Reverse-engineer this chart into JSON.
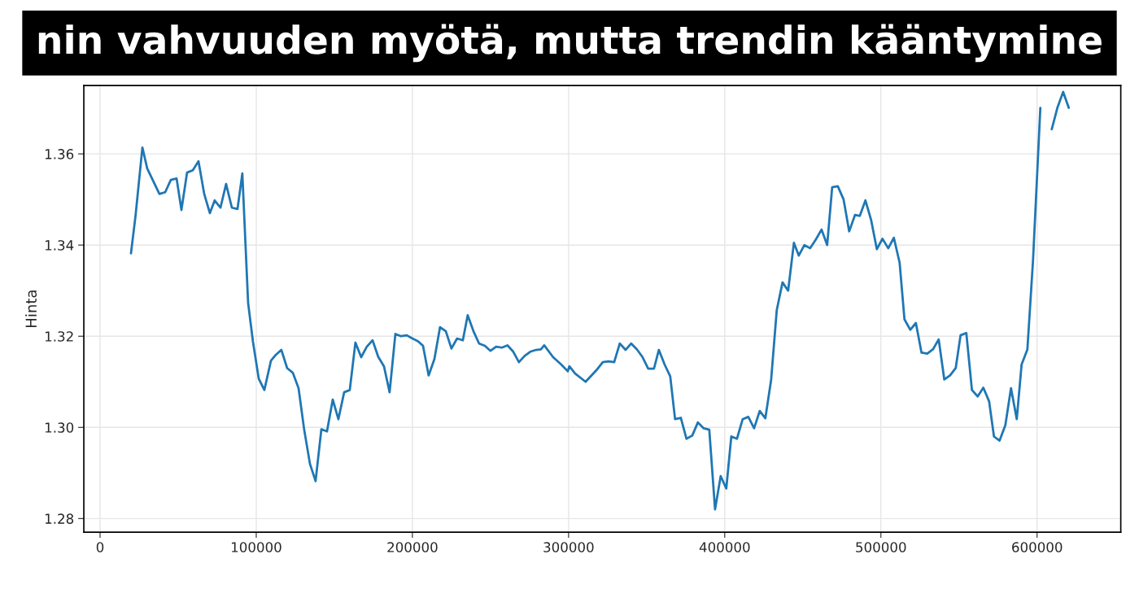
{
  "chart_data": {
    "type": "line",
    "title": "nin vahvuuden myötä, mutta trendin kääntymine",
    "ylabel": "Hinta",
    "x": [
      19800,
      22700,
      27100,
      30200,
      38000,
      41700,
      45300,
      49000,
      52100,
      55700,
      59400,
      63000,
      66700,
      70300,
      73400,
      77100,
      80700,
      84400,
      88000,
      91100,
      94800,
      97900,
      101600,
      105200,
      109400,
      112500,
      116100,
      119800,
      123400,
      127100,
      130700,
      134400,
      138000,
      141700,
      145300,
      149000,
      152600,
      156300,
      159900,
      163500,
      167200,
      170800,
      174500,
      178100,
      181800,
      185400,
      189100,
      192700,
      196400,
      200000,
      203600,
      206800,
      210400,
      214100,
      217700,
      221400,
      225000,
      228600,
      232300,
      235400,
      239100,
      242700,
      246400,
      250000,
      253600,
      257300,
      260900,
      264600,
      268200,
      271900,
      275500,
      279200,
      282300,
      284400,
      290100,
      295300,
      299500,
      300500,
      304200,
      310900,
      317700,
      321900,
      325500,
      329200,
      332800,
      336500,
      340100,
      343800,
      347400,
      351000,
      354700,
      357800,
      361500,
      365100,
      368200,
      371900,
      375500,
      379200,
      382800,
      386500,
      390100,
      393800,
      397400,
      401000,
      404200,
      407800,
      411500,
      415100,
      418800,
      422400,
      426000,
      429700,
      433300,
      437000,
      440600,
      444300,
      447400,
      451000,
      454700,
      458300,
      462000,
      465600,
      468800,
      472400,
      476100,
      479700,
      483400,
      486500,
      490100,
      493800,
      497400,
      501000,
      504700,
      508300,
      512000,
      515100,
      518800,
      522400,
      526000,
      529700,
      533300,
      537000,
      540600,
      544300,
      547900,
      551000,
      554700,
      558300,
      562000,
      565600,
      569300,
      572400,
      576000,
      579700,
      583300,
      587000,
      590100,
      593800,
      597400,
      602100,
      605700,
      609400,
      613000,
      616700,
      620300
    ],
    "series": [
      {
        "color": "#1f77b4",
        "values": [
          1.3382,
          1.3464,
          1.3614,
          1.3568,
          1.3512,
          1.3516,
          1.3543,
          1.3546,
          1.3477,
          1.3559,
          1.3564,
          1.3584,
          1.3512,
          1.347,
          1.3498,
          1.3482,
          1.3534,
          1.3482,
          1.3479,
          1.3557,
          1.3273,
          1.3188,
          1.3107,
          1.3082,
          1.3146,
          1.3159,
          1.317,
          1.313,
          1.312,
          1.3086,
          1.2995,
          1.292,
          1.2882,
          1.2996,
          1.2991,
          1.3061,
          1.3018,
          1.3077,
          1.3082,
          1.3186,
          1.3154,
          1.3177,
          1.3191,
          1.3155,
          1.3134,
          1.3077,
          1.3205,
          1.32,
          1.3202,
          1.3195,
          1.3189,
          1.3179,
          1.3114,
          1.315,
          1.322,
          1.3211,
          1.3173,
          1.3195,
          1.3191,
          1.3246,
          1.3211,
          1.3184,
          1.3179,
          1.3168,
          1.3177,
          1.3175,
          1.318,
          1.3166,
          1.3143,
          1.3157,
          1.3166,
          1.317,
          1.3171,
          1.318,
          1.3154,
          1.3138,
          1.3123,
          1.3134,
          1.3118,
          1.31,
          1.3125,
          1.3143,
          1.3145,
          1.3143,
          1.3184,
          1.317,
          1.3184,
          1.3171,
          1.3154,
          1.3129,
          1.3129,
          1.317,
          1.3138,
          1.3112,
          1.3018,
          1.3021,
          1.2975,
          1.2982,
          1.3011,
          1.2998,
          1.2995,
          1.282,
          1.2893,
          1.2866,
          1.298,
          1.2975,
          1.3018,
          1.3023,
          1.2998,
          1.3036,
          1.302,
          1.3104,
          1.3257,
          1.3318,
          1.33,
          1.3405,
          1.3377,
          1.34,
          1.3393,
          1.3412,
          1.3434,
          1.34,
          1.3527,
          1.3529,
          1.35,
          1.343,
          1.3466,
          1.3464,
          1.3498,
          1.3454,
          1.3391,
          1.3414,
          1.3393,
          1.3416,
          1.3361,
          1.3237,
          1.3214,
          1.3229,
          1.3164,
          1.3162,
          1.3171,
          1.3193,
          1.3105,
          1.3114,
          1.313,
          1.3202,
          1.3207,
          1.3082,
          1.3068,
          1.3087,
          1.3057,
          1.298,
          1.2971,
          1.3005,
          1.3086,
          1.3018,
          1.3138,
          1.3171,
          1.3366,
          1.3701,
          null,
          1.3654,
          1.3701,
          1.3736,
          1.3701
        ]
      }
    ],
    "xlim": [
      -10400,
      653600
    ],
    "ylim": [
      1.277,
      1.375
    ],
    "xticks": [
      0,
      100000,
      200000,
      300000,
      400000,
      500000,
      600000
    ],
    "yticks": [
      1.28,
      {
        "value": 1.3,
        "label": "1.30"
      },
      1.32,
      1.34,
      1.36
    ],
    "grid": true,
    "line_style": "solid",
    "marker": "none"
  }
}
